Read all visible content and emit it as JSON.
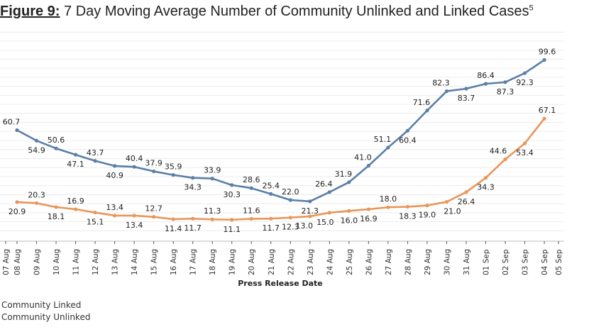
{
  "title": {
    "prefix": "Figure 9:",
    "text": " 7 Day Moving Average Number of Community Unlinked and Linked Cases",
    "footnote": "5"
  },
  "chart_data": {
    "type": "line",
    "title": "7 Day Moving Average Number of Community Unlinked and Linked Cases",
    "xlabel": "Press Release Date",
    "ylabel": "",
    "x_tick_labels": [
      "07 Aug",
      "08 Aug",
      "09 Aug",
      "10 Aug",
      "11 Aug",
      "12 Aug",
      "13 Aug",
      "14 Aug",
      "15 Aug",
      "16 Aug",
      "17 Aug",
      "18 Aug",
      "19 Aug",
      "20 Aug",
      "21 Aug",
      "22 Aug",
      "23 Aug",
      "24 Aug",
      "25 Aug",
      "26 Aug",
      "27 Aug",
      "28 Aug",
      "29 Aug",
      "30 Aug",
      "31 Aug",
      "01 Sep",
      "02 Sep",
      "03 Sep",
      "04 Sep",
      "05 Sep"
    ],
    "x": [
      "08 Aug",
      "09 Aug",
      "10 Aug",
      "11 Aug",
      "12 Aug",
      "13 Aug",
      "14 Aug",
      "15 Aug",
      "16 Aug",
      "17 Aug",
      "18 Aug",
      "19 Aug",
      "20 Aug",
      "21 Aug",
      "22 Aug",
      "23 Aug",
      "24 Aug",
      "25 Aug",
      "26 Aug",
      "27 Aug",
      "28 Aug",
      "29 Aug",
      "30 Aug",
      "31 Aug",
      "01 Sep",
      "02 Sep",
      "03 Sep",
      "04 Sep"
    ],
    "ylim": [
      0,
      115
    ],
    "grid": true,
    "legend_position": "bottom-left",
    "series": [
      {
        "name": "Community Linked",
        "color": "#5b7fa8",
        "values": [
          60.7,
          54.9,
          50.6,
          47.1,
          43.7,
          40.9,
          40.4,
          37.9,
          35.9,
          34.3,
          33.9,
          30.3,
          28.6,
          25.4,
          22.0,
          21.3,
          26.4,
          31.9,
          41.0,
          51.1,
          60.4,
          71.6,
          82.3,
          83.7,
          86.4,
          87.3,
          92.3,
          99.6
        ]
      },
      {
        "name": "Community Unlinked",
        "color": "#e9965a",
        "values": [
          20.9,
          20.3,
          18.1,
          16.9,
          15.1,
          13.4,
          13.4,
          12.7,
          11.4,
          11.7,
          11.3,
          11.1,
          11.6,
          11.7,
          12.3,
          13.0,
          15.0,
          16.0,
          16.9,
          18.0,
          18.3,
          19.0,
          21.0,
          26.4,
          34.3,
          44.6,
          53.4,
          67.1
        ]
      }
    ]
  }
}
